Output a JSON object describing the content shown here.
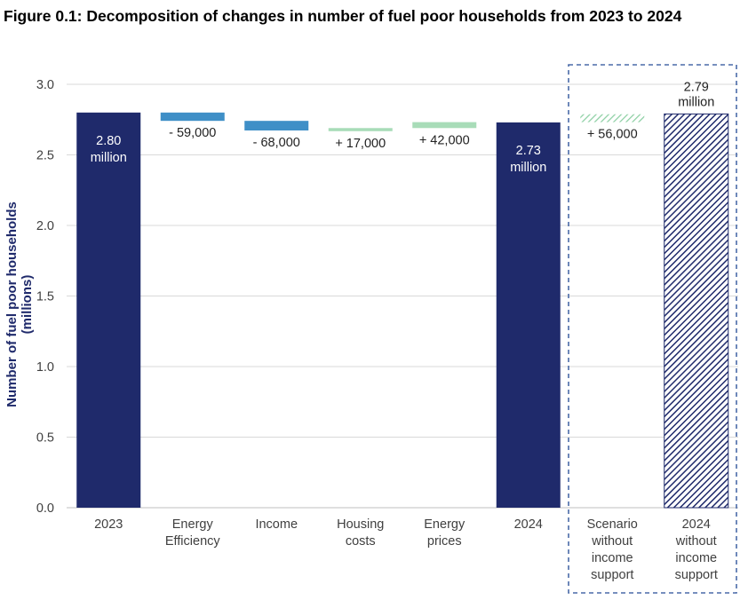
{
  "title": "Figure 0.1: Decomposition of changes in number of fuel poor households from 2023 to 2024",
  "chart_data": {
    "type": "bar",
    "subtype": "waterfall",
    "title": "Figure 0.1: Decomposition of changes in number of fuel poor households from 2023 to 2024",
    "xlabel": "",
    "ylabel": "Number of fuel poor households (millions)",
    "ylim": [
      0,
      3.0
    ],
    "yticks": [
      "0.0",
      "0.5",
      "1.0",
      "1.5",
      "2.0",
      "2.5",
      "3.0"
    ],
    "grid": true,
    "categories": [
      "2023",
      "Energy Efficiency",
      "Income",
      "Housing costs",
      "Energy prices",
      "2024",
      "Scenario without income support",
      "2024 without income support"
    ],
    "category_lines": [
      [
        "2023"
      ],
      [
        "Energy",
        "Efficiency"
      ],
      [
        "Income"
      ],
      [
        "Housing",
        "costs"
      ],
      [
        "Energy",
        "prices"
      ],
      [
        "2024"
      ],
      [
        "Scenario",
        "without",
        "income",
        "support"
      ],
      [
        "2024",
        "without",
        "income",
        "support"
      ]
    ],
    "bars": [
      {
        "kind": "total",
        "start": 0,
        "end": 2.8,
        "label_lines": [
          "2.80",
          "million"
        ],
        "color": "#1f2a6b"
      },
      {
        "kind": "change",
        "start": 2.8,
        "end": 2.741,
        "label": "- 59,000",
        "color": "#3f8fc7"
      },
      {
        "kind": "change",
        "start": 2.741,
        "end": 2.673,
        "label": "- 68,000",
        "color": "#3f8fc7"
      },
      {
        "kind": "change",
        "start": 2.673,
        "end": 2.69,
        "label": "+ 17,000",
        "color": "#a8dcb8"
      },
      {
        "kind": "change",
        "start": 2.69,
        "end": 2.732,
        "label": "+ 42,000",
        "color": "#a8dcb8"
      },
      {
        "kind": "total",
        "start": 0,
        "end": 2.73,
        "label_lines": [
          "2.73",
          "million"
        ],
        "color": "#1f2a6b"
      },
      {
        "kind": "change-hatched",
        "start": 2.732,
        "end": 2.788,
        "label": "+ 56,000",
        "color": "#a8dcb8"
      },
      {
        "kind": "total-hatched",
        "start": 0,
        "end": 2.79,
        "label_lines": [
          "2.79",
          "million"
        ],
        "color": "#1f2a6b"
      }
    ],
    "highlight_box": {
      "from_category": 6,
      "to_category": 7,
      "style": "dashed",
      "color": "#4a6aa8"
    }
  }
}
